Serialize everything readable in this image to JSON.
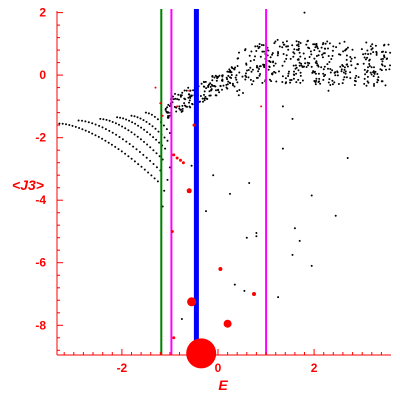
{
  "chart_data": {
    "type": "scatter",
    "xlabel": "E",
    "ylabel": "<J3>",
    "xlim": [
      -3.35,
      3.6
    ],
    "ylim": [
      -8.95,
      2.05
    ],
    "x_ticks": [
      -2,
      0,
      2
    ],
    "y_ticks": [
      2,
      0,
      -2,
      -4,
      -6,
      -8
    ],
    "grid": false,
    "colors": {
      "axes": "#ff0000",
      "points": "#000000",
      "highlight_points": "#ff0000",
      "line_green": "#008000",
      "line_magenta": "#ff00ff",
      "line_blue": "#0000ff"
    },
    "vertical_lines": [
      {
        "x": -1.18,
        "color": "#008000",
        "width": 2
      },
      {
        "x": -0.97,
        "color": "#ff00ff",
        "width": 2
      },
      {
        "x": -0.45,
        "color": "#0000ff",
        "width": 5
      },
      {
        "x": 1.0,
        "color": "#ff00ff",
        "width": 2
      }
    ],
    "bands": [
      {
        "a": -3.3,
        "b": -1.25,
        "y0": -1.55,
        "y1": -3.4,
        "n": 30
      },
      {
        "a": -2.9,
        "b": -1.2,
        "y0": -1.45,
        "y1": -3.05,
        "n": 24
      },
      {
        "a": -2.45,
        "b": -1.15,
        "y0": -1.4,
        "y1": -2.7,
        "n": 20
      },
      {
        "a": -2.1,
        "b": -1.1,
        "y0": -1.35,
        "y1": -2.35,
        "n": 16
      },
      {
        "a": -1.8,
        "b": -1.05,
        "y0": -1.3,
        "y1": -2.1,
        "n": 12
      },
      {
        "a": -1.5,
        "b": -1.0,
        "y0": -1.2,
        "y1": -1.85,
        "n": 8
      }
    ],
    "black_points": [
      [
        -1.15,
        -4.2
      ],
      [
        -1.12,
        -3.7
      ],
      [
        -1.05,
        -3.35
      ],
      [
        -1.0,
        -2.95
      ],
      [
        -0.95,
        -2.55
      ],
      [
        -0.55,
        -2.9
      ],
      [
        -0.45,
        -4.6
      ],
      [
        -0.1,
        -3.2
      ],
      [
        0.25,
        -3.8
      ],
      [
        0.6,
        -5.2
      ],
      [
        0.8,
        -5.05
      ],
      [
        0.8,
        -5.15
      ],
      [
        -0.25,
        -4.35
      ],
      [
        1.35,
        -2.35
      ],
      [
        1.7,
        -5.3
      ],
      [
        1.6,
        -4.9
      ],
      [
        1.95,
        -6.1
      ],
      [
        2.45,
        -4.5
      ],
      [
        2.7,
        -2.65
      ],
      [
        1.55,
        -5.75
      ],
      [
        0.35,
        -6.7
      ],
      [
        0.55,
        -6.9
      ],
      [
        1.25,
        -7.1
      ],
      [
        -0.75,
        -7.8
      ],
      [
        1.95,
        -3.85
      ],
      [
        1.35,
        -1.0
      ],
      [
        1.55,
        -1.4
      ],
      [
        2.3,
        -0.5
      ],
      [
        1.8,
        2.0
      ],
      [
        0.65,
        -3.45
      ]
    ],
    "red_points": [
      {
        "x": -0.92,
        "y": -2.55,
        "r": 1.5
      },
      {
        "x": -0.85,
        "y": -2.65,
        "r": 1.5
      },
      {
        "x": -0.78,
        "y": -2.72,
        "r": 1.5
      },
      {
        "x": -0.72,
        "y": -2.8,
        "r": 1.5
      },
      {
        "x": -0.5,
        "y": -1.6,
        "r": 1.5
      },
      {
        "x": -0.6,
        "y": -3.7,
        "r": 2.5
      },
      {
        "x": -0.95,
        "y": -5.0,
        "r": 1.5
      },
      {
        "x": 0.05,
        "y": -6.2,
        "r": 2
      },
      {
        "x": 0.75,
        "y": -7.0,
        "r": 2
      },
      {
        "x": -0.55,
        "y": -7.25,
        "r": 4.5
      },
      {
        "x": 0.2,
        "y": -7.95,
        "r": 4
      },
      {
        "x": -0.92,
        "y": -8.4,
        "r": 1.5
      },
      {
        "x": -0.35,
        "y": -8.9,
        "r": 15
      }
    ],
    "red_diagonal_dots": [
      {
        "x": -1.3,
        "y": -0.4
      },
      {
        "x": -1.2,
        "y": -0.9
      },
      {
        "x": -1.15,
        "y": -1.3
      },
      {
        "x": -0.85,
        "y": -1.0
      },
      {
        "x": -0.6,
        "y": -0.5
      },
      {
        "x": 0.9,
        "y": -1.0
      }
    ]
  }
}
